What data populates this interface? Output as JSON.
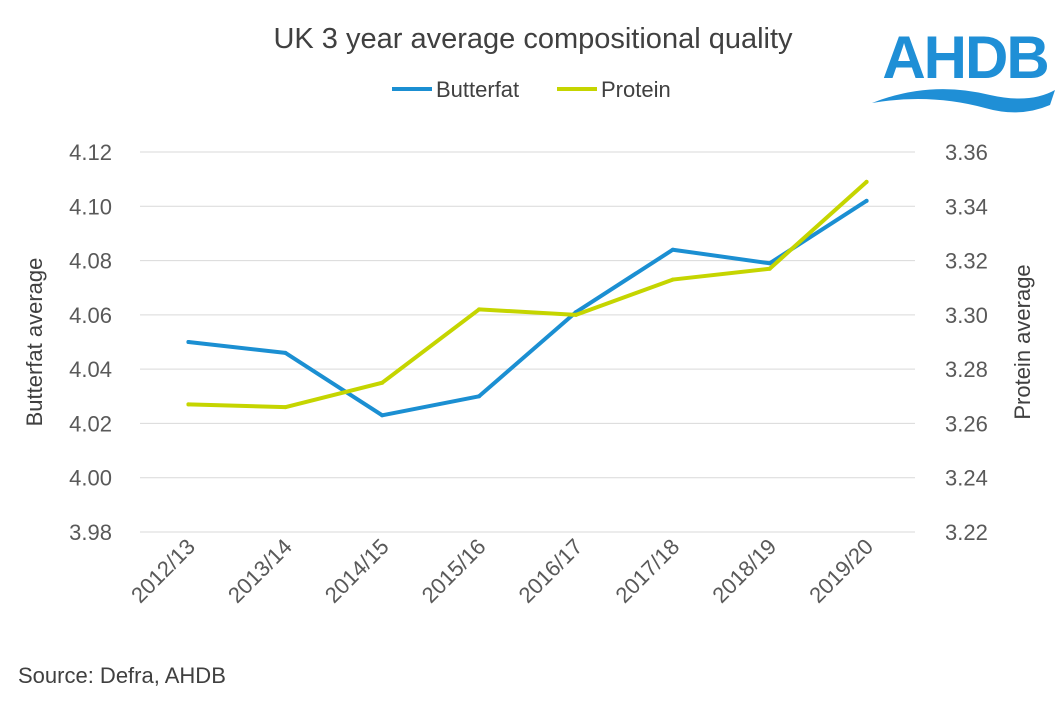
{
  "logo": {
    "text": "AHDB",
    "color": "#1f8fd6"
  },
  "source": "Source: Defra, AHDB",
  "chart_data": {
    "type": "line",
    "title": "UK 3 year average compositional quality",
    "categories": [
      "2012/13",
      "2013/14",
      "2014/15",
      "2015/16",
      "2016/17",
      "2017/18",
      "2018/19",
      "2019/20"
    ],
    "series": [
      {
        "name": "Butterfat",
        "axis": "left",
        "color": "#1b8fd2",
        "values": [
          4.05,
          4.046,
          4.023,
          4.03,
          4.061,
          4.084,
          4.079,
          4.102
        ]
      },
      {
        "name": "Protein",
        "axis": "right",
        "color": "#c5d500",
        "values": [
          3.267,
          3.266,
          3.275,
          3.302,
          3.3,
          3.313,
          3.317,
          3.349
        ]
      }
    ],
    "ylabel": "Butterfat average",
    "y2label": "Protein average",
    "ylim": [
      3.98,
      4.12
    ],
    "y2lim": [
      3.22,
      3.36
    ],
    "yticks": [
      "3.98",
      "4.00",
      "4.02",
      "4.04",
      "4.06",
      "4.08",
      "4.10",
      "4.12"
    ],
    "y2ticks": [
      "3.22",
      "3.24",
      "3.26",
      "3.28",
      "3.30",
      "3.32",
      "3.34",
      "3.36"
    ],
    "grid": true,
    "legend": "top-center"
  }
}
